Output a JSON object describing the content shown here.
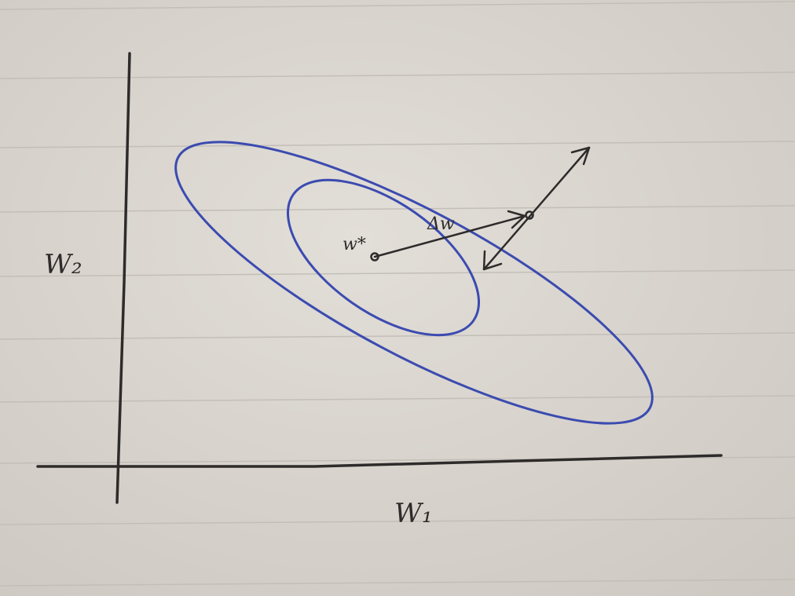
{
  "diagram": {
    "axis_labels": {
      "x": "W₁",
      "y": "W₂"
    },
    "point_labels": {
      "optimum": "w*",
      "delta": "Δw"
    },
    "colors": {
      "paper": "#d9d5cf",
      "rule_line": "#c3bfb8",
      "pencil": "#2e2b2b",
      "contour": "#3b4bb0"
    }
  }
}
